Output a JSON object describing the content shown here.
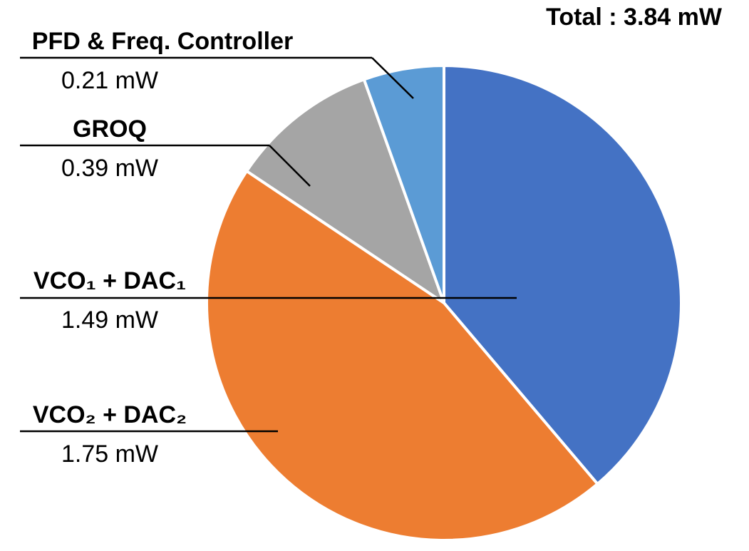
{
  "chart_data": {
    "type": "pie",
    "title": "Total : 3.84 mW",
    "slices": [
      {
        "name": "VCO₁ + DAC₁",
        "value": 1.49,
        "label_value": "1.49 mW",
        "color": "#4472C4"
      },
      {
        "name": "VCO₂ + DAC₂",
        "value": 1.75,
        "label_value": "1.75 mW",
        "color": "#ED7D31"
      },
      {
        "name": "GROQ",
        "value": 0.39,
        "label_value": "0.39 mW",
        "color": "#A5A5A5"
      },
      {
        "name": "PFD & Freq. Controller",
        "value": 0.21,
        "label_value": "0.21 mW",
        "color": "#5B9BD5"
      }
    ]
  }
}
